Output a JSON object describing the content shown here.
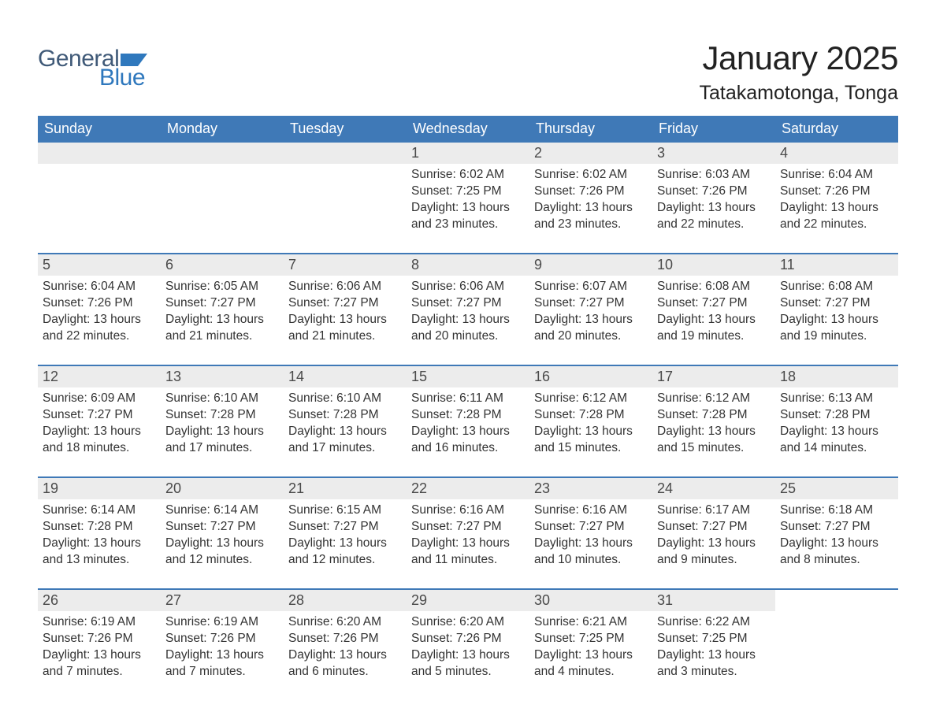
{
  "logo": {
    "text1": "General",
    "text2": "Blue"
  },
  "title": "January 2025",
  "location": "Tatakamotonga, Tonga",
  "colors": {
    "header_bg": "#3f79b7",
    "header_text": "#ffffff",
    "daynum_bg": "#ececec",
    "week_border": "#3f79b7",
    "body_text": "#333333",
    "logo_general": "#405a78",
    "logo_blue": "#2f78bd"
  },
  "day_names": [
    "Sunday",
    "Monday",
    "Tuesday",
    "Wednesday",
    "Thursday",
    "Friday",
    "Saturday"
  ],
  "weeks": [
    [
      null,
      null,
      null,
      {
        "n": "1",
        "sunrise": "6:02 AM",
        "sunset": "7:25 PM",
        "daylight": "13 hours and 23 minutes."
      },
      {
        "n": "2",
        "sunrise": "6:02 AM",
        "sunset": "7:26 PM",
        "daylight": "13 hours and 23 minutes."
      },
      {
        "n": "3",
        "sunrise": "6:03 AM",
        "sunset": "7:26 PM",
        "daylight": "13 hours and 22 minutes."
      },
      {
        "n": "4",
        "sunrise": "6:04 AM",
        "sunset": "7:26 PM",
        "daylight": "13 hours and 22 minutes."
      }
    ],
    [
      {
        "n": "5",
        "sunrise": "6:04 AM",
        "sunset": "7:26 PM",
        "daylight": "13 hours and 22 minutes."
      },
      {
        "n": "6",
        "sunrise": "6:05 AM",
        "sunset": "7:27 PM",
        "daylight": "13 hours and 21 minutes."
      },
      {
        "n": "7",
        "sunrise": "6:06 AM",
        "sunset": "7:27 PM",
        "daylight": "13 hours and 21 minutes."
      },
      {
        "n": "8",
        "sunrise": "6:06 AM",
        "sunset": "7:27 PM",
        "daylight": "13 hours and 20 minutes."
      },
      {
        "n": "9",
        "sunrise": "6:07 AM",
        "sunset": "7:27 PM",
        "daylight": "13 hours and 20 minutes."
      },
      {
        "n": "10",
        "sunrise": "6:08 AM",
        "sunset": "7:27 PM",
        "daylight": "13 hours and 19 minutes."
      },
      {
        "n": "11",
        "sunrise": "6:08 AM",
        "sunset": "7:27 PM",
        "daylight": "13 hours and 19 minutes."
      }
    ],
    [
      {
        "n": "12",
        "sunrise": "6:09 AM",
        "sunset": "7:27 PM",
        "daylight": "13 hours and 18 minutes."
      },
      {
        "n": "13",
        "sunrise": "6:10 AM",
        "sunset": "7:28 PM",
        "daylight": "13 hours and 17 minutes."
      },
      {
        "n": "14",
        "sunrise": "6:10 AM",
        "sunset": "7:28 PM",
        "daylight": "13 hours and 17 minutes."
      },
      {
        "n": "15",
        "sunrise": "6:11 AM",
        "sunset": "7:28 PM",
        "daylight": "13 hours and 16 minutes."
      },
      {
        "n": "16",
        "sunrise": "6:12 AM",
        "sunset": "7:28 PM",
        "daylight": "13 hours and 15 minutes."
      },
      {
        "n": "17",
        "sunrise": "6:12 AM",
        "sunset": "7:28 PM",
        "daylight": "13 hours and 15 minutes."
      },
      {
        "n": "18",
        "sunrise": "6:13 AM",
        "sunset": "7:28 PM",
        "daylight": "13 hours and 14 minutes."
      }
    ],
    [
      {
        "n": "19",
        "sunrise": "6:14 AM",
        "sunset": "7:28 PM",
        "daylight": "13 hours and 13 minutes."
      },
      {
        "n": "20",
        "sunrise": "6:14 AM",
        "sunset": "7:27 PM",
        "daylight": "13 hours and 12 minutes."
      },
      {
        "n": "21",
        "sunrise": "6:15 AM",
        "sunset": "7:27 PM",
        "daylight": "13 hours and 12 minutes."
      },
      {
        "n": "22",
        "sunrise": "6:16 AM",
        "sunset": "7:27 PM",
        "daylight": "13 hours and 11 minutes."
      },
      {
        "n": "23",
        "sunrise": "6:16 AM",
        "sunset": "7:27 PM",
        "daylight": "13 hours and 10 minutes."
      },
      {
        "n": "24",
        "sunrise": "6:17 AM",
        "sunset": "7:27 PM",
        "daylight": "13 hours and 9 minutes."
      },
      {
        "n": "25",
        "sunrise": "6:18 AM",
        "sunset": "7:27 PM",
        "daylight": "13 hours and 8 minutes."
      }
    ],
    [
      {
        "n": "26",
        "sunrise": "6:19 AM",
        "sunset": "7:26 PM",
        "daylight": "13 hours and 7 minutes."
      },
      {
        "n": "27",
        "sunrise": "6:19 AM",
        "sunset": "7:26 PM",
        "daylight": "13 hours and 7 minutes."
      },
      {
        "n": "28",
        "sunrise": "6:20 AM",
        "sunset": "7:26 PM",
        "daylight": "13 hours and 6 minutes."
      },
      {
        "n": "29",
        "sunrise": "6:20 AM",
        "sunset": "7:26 PM",
        "daylight": "13 hours and 5 minutes."
      },
      {
        "n": "30",
        "sunrise": "6:21 AM",
        "sunset": "7:25 PM",
        "daylight": "13 hours and 4 minutes."
      },
      {
        "n": "31",
        "sunrise": "6:22 AM",
        "sunset": "7:25 PM",
        "daylight": "13 hours and 3 minutes."
      },
      null
    ]
  ],
  "labels": {
    "sunrise_prefix": "Sunrise: ",
    "sunset_prefix": "Sunset: ",
    "daylight_prefix": "Daylight: "
  }
}
